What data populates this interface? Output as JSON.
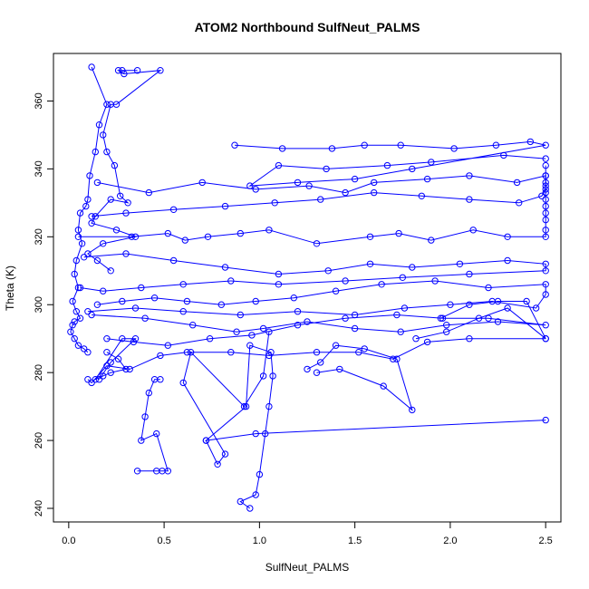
{
  "chart_data": {
    "type": "line",
    "title": "ATOM2 Northbound SulfNeut_PALMS",
    "xlabel": "SulfNeut_PALMS",
    "ylabel": "Theta (K)",
    "xlim": [
      -0.08,
      2.58
    ],
    "ylim": [
      236,
      374
    ],
    "x_ticks": [
      0.0,
      0.5,
      1.0,
      1.5,
      2.0,
      2.5
    ],
    "x_tick_labels": [
      "0.0",
      "0.5",
      "1.0",
      "1.5",
      "2.0",
      "2.5"
    ],
    "y_ticks": [
      240,
      260,
      280,
      300,
      320,
      340,
      360
    ],
    "y_tick_labels": [
      "240",
      "260",
      "280",
      "300",
      "320",
      "340",
      "360"
    ],
    "grid": false,
    "legend": "none",
    "series_color": "#0000ff",
    "marker": "open-circle",
    "series": [
      {
        "x": [
          0.12,
          0.2,
          0.16,
          0.14,
          0.11,
          0.1,
          0.09,
          0.06,
          0.05,
          0.07,
          0.04,
          0.03,
          0.05,
          0.02,
          0.04,
          0.06,
          0.03,
          0.02,
          0.01,
          0.03,
          0.05,
          0.08,
          0.1
        ],
        "y": [
          370,
          359,
          353,
          345,
          338,
          331,
          329,
          327,
          322,
          318,
          313,
          309,
          305,
          301,
          298,
          296,
          295,
          294,
          292,
          290,
          288,
          287,
          286
        ]
      },
      {
        "x": [
          0.36,
          0.28,
          0.26,
          0.29,
          0.48,
          0.25,
          0.22,
          0.18,
          0.2,
          0.24,
          0.27,
          0.31,
          0.22,
          0.14,
          0.12,
          0.25,
          0.35,
          0.18,
          0.1,
          0.15,
          0.22
        ],
        "y": [
          369,
          369,
          369,
          368,
          369,
          359,
          359,
          350,
          345,
          341,
          332,
          330,
          331,
          326,
          324,
          322,
          320,
          318,
          315,
          313,
          310
        ]
      },
      {
        "x": [
          0.05,
          0.33,
          0.52,
          0.61,
          0.73,
          0.9,
          1.05,
          1.3,
          1.58,
          1.73,
          1.9,
          2.12,
          2.3,
          2.5,
          2.5,
          2.5,
          2.5,
          2.5,
          2.5,
          2.5,
          2.5,
          2.5,
          2.5
        ],
        "y": [
          320,
          320,
          321,
          319,
          320,
          321,
          322,
          318,
          320,
          321,
          319,
          322,
          320,
          320,
          322,
          325,
          327,
          329,
          331,
          333,
          336,
          338,
          341
        ]
      },
      {
        "x": [
          0.87,
          1.12,
          1.38,
          1.55,
          1.74,
          2.02,
          2.24,
          2.42,
          2.5,
          1.8,
          1.5,
          1.2,
          0.95,
          1.1,
          1.35,
          1.67,
          1.9,
          2.28,
          2.5
        ],
        "y": [
          347,
          346,
          346,
          347,
          347,
          346,
          347,
          348,
          347,
          340,
          337,
          336,
          335,
          341,
          340,
          341,
          342,
          344,
          343
        ]
      },
      {
        "x": [
          0.15,
          0.42,
          0.7,
          0.98,
          1.26,
          1.45,
          1.6,
          1.88,
          2.1,
          2.35,
          2.5,
          2.5,
          2.5,
          2.48,
          2.36,
          2.1,
          1.85,
          1.6,
          1.32,
          1.08,
          0.82,
          0.55,
          0.3,
          0.12
        ],
        "y": [
          336,
          333,
          336,
          334,
          335,
          333,
          336,
          337,
          338,
          336,
          338,
          335,
          334,
          332,
          330,
          331,
          332,
          333,
          331,
          330,
          329,
          328,
          327,
          326
        ]
      },
      {
        "x": [
          0.08,
          0.3,
          0.55,
          0.82,
          1.1,
          1.36,
          1.58,
          1.8,
          2.05,
          2.3,
          2.5,
          2.5,
          2.1,
          1.75,
          1.45,
          1.1,
          0.85,
          0.6,
          0.38,
          0.18,
          0.06
        ],
        "y": [
          314,
          315,
          313,
          311,
          309,
          310,
          312,
          311,
          312,
          313,
          312,
          310,
          309,
          308,
          307,
          306,
          307,
          306,
          305,
          304,
          305
        ]
      },
      {
        "x": [
          0.1,
          0.35,
          0.6,
          0.9,
          1.2,
          1.5,
          1.76,
          2.0,
          2.22,
          2.45,
          2.5,
          2.5,
          2.2,
          1.92,
          1.64,
          1.4,
          1.18,
          0.98,
          0.8,
          0.62,
          0.45,
          0.28,
          0.15
        ],
        "y": [
          298,
          299,
          298,
          297,
          298,
          297,
          299,
          300,
          301,
          299,
          303,
          306,
          305,
          307,
          306,
          304,
          302,
          301,
          300,
          301,
          302,
          301,
          300
        ]
      },
      {
        "x": [
          0.12,
          0.4,
          0.65,
          0.88,
          1.02,
          1.25,
          1.5,
          1.74,
          1.98,
          2.25,
          2.5,
          2.2,
          1.96,
          1.72,
          1.45,
          1.2,
          0.96,
          0.74,
          0.52,
          0.34,
          0.2
        ],
        "y": [
          297,
          296,
          294,
          292,
          293,
          295,
          293,
          292,
          294,
          295,
          294,
          296,
          296,
          297,
          296,
          294,
          291,
          290,
          288,
          289,
          290
        ]
      },
      {
        "x": [
          0.1,
          0.12,
          0.2,
          0.32,
          0.48,
          0.62,
          0.85,
          1.05,
          1.3,
          1.52,
          1.7,
          1.88,
          2.1,
          2.5
        ],
        "y": [
          278,
          277,
          282,
          281,
          285,
          286,
          286,
          285,
          286,
          286,
          284,
          289,
          290,
          290
        ]
      },
      {
        "x": [
          0.95,
          0.9,
          0.98,
          1.0,
          1.03,
          1.05,
          1.07,
          1.06,
          0.95,
          0.93,
          0.72,
          0.98,
          2.5
        ],
        "y": [
          240,
          242,
          244,
          250,
          262,
          270,
          279,
          286,
          288,
          270,
          260,
          262,
          266
        ]
      },
      {
        "x": [
          0.36,
          0.46,
          0.49,
          0.52,
          0.46,
          0.38,
          0.4,
          0.42,
          0.45,
          0.48
        ],
        "y": [
          251,
          251,
          251,
          251,
          262,
          260,
          267,
          274,
          278,
          278
        ]
      },
      {
        "x": [
          0.72,
          0.78,
          0.82,
          0.6,
          0.64,
          0.92,
          1.02,
          1.05
        ],
        "y": [
          260,
          253,
          256,
          277,
          286,
          270,
          279,
          292
        ]
      },
      {
        "x": [
          1.25,
          1.32,
          1.4,
          1.55,
          1.72,
          1.8,
          1.65,
          1.42,
          1.3
        ],
        "y": [
          281,
          283,
          288,
          287,
          284,
          269,
          276,
          281,
          280
        ]
      },
      {
        "x": [
          0.2,
          0.26,
          0.3,
          0.22,
          0.18,
          0.14,
          0.28,
          0.35,
          0.22,
          0.16
        ],
        "y": [
          286,
          284,
          281,
          280,
          279,
          278,
          290,
          290,
          283,
          278
        ]
      },
      {
        "x": [
          1.95,
          2.1,
          2.25,
          2.4,
          2.5,
          2.3,
          2.15,
          1.98,
          1.82
        ],
        "y": [
          296,
          300,
          301,
          301,
          290,
          299,
          296,
          292,
          290
        ]
      }
    ]
  }
}
